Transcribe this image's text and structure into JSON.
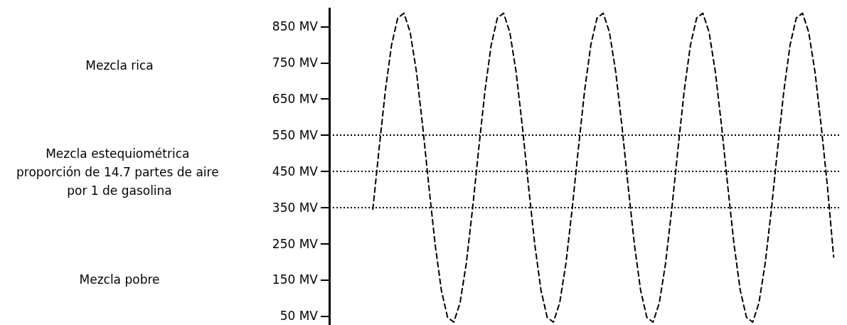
{
  "chart_data": {
    "type": "line",
    "categories": [
      null,
      null,
      null,
      null,
      null,
      null,
      null,
      null,
      null,
      null,
      null,
      null,
      null,
      null,
      null,
      null,
      null,
      null,
      null,
      null,
      null,
      null,
      null,
      null,
      null,
      null,
      null,
      null,
      null,
      null,
      null,
      null,
      null,
      null,
      null,
      null,
      null,
      null,
      null,
      null,
      null,
      null,
      null,
      null,
      null,
      null,
      null,
      null,
      null,
      null,
      null,
      null,
      null,
      null,
      null,
      null,
      null,
      null,
      null,
      null,
      null,
      null,
      null,
      null,
      null,
      null,
      null,
      null,
      null,
      null,
      null,
      null,
      null,
      null,
      null,
      null,
      null,
      null,
      null,
      null,
      null,
      null,
      null
    ],
    "series": [
      {
        "color": "#000000",
        "values": [
          null,
          null,
          null,
          null,
          null,
          null,
          null,
          345,
          512,
          672,
          799,
          874,
          887,
          834,
          725,
          575,
          408,
          248,
          121,
          46,
          33,
          86,
          195,
          345,
          512,
          672,
          799,
          874,
          887,
          834,
          725,
          575,
          408,
          248,
          121,
          46,
          33,
          86,
          195,
          345,
          512,
          672,
          799,
          874,
          887,
          834,
          725,
          575,
          408,
          248,
          121,
          46,
          33,
          86,
          195,
          345,
          512,
          672,
          799,
          874,
          887,
          834,
          725,
          575,
          408,
          248,
          121,
          46,
          33,
          86,
          195,
          345,
          512,
          672,
          799,
          874,
          887,
          834,
          725,
          575,
          408,
          213,
          null
        ]
      }
    ],
    "ylim": [
      25,
      900
    ],
    "yticks": [
      {
        "value": 50,
        "label": "50 MV"
      },
      {
        "value": 150,
        "label": "150 MV"
      },
      {
        "value": 250,
        "label": "250 MV"
      },
      {
        "value": 350,
        "label": "350 MV"
      },
      {
        "value": 450,
        "label": "450 MV"
      },
      {
        "value": 550,
        "label": "550 MV"
      },
      {
        "value": 650,
        "label": "650 MV"
      },
      {
        "value": 750,
        "label": "750 MV"
      },
      {
        "value": 850,
        "label": "850 MV"
      }
    ],
    "tick_labels": "y",
    "grid": false,
    "line_style": "dashed",
    "ref_lines": [
      {
        "axis": "y",
        "value": 550,
        "color": "#000000",
        "line_style": "dotted"
      },
      {
        "axis": "y",
        "value": 450,
        "color": "#000000",
        "line_style": "dotted"
      },
      {
        "axis": "y",
        "value": 350,
        "color": "#000000",
        "line_style": "dotted"
      }
    ],
    "annotations": [
      "Mezcla rica",
      "Mezcla estequiométrica proporción de 14.7 partes de aire por 1 de gasolina",
      "Mezcla pobre"
    ]
  }
}
